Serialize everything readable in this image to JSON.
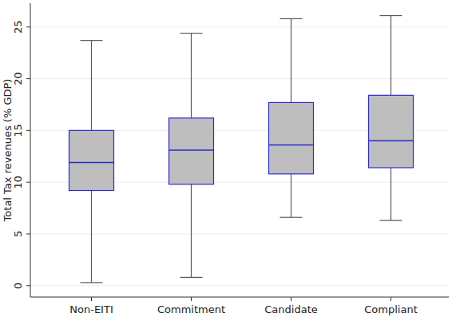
{
  "chart_data": {
    "type": "box",
    "y_label": "Total Tax revenues (% GDP)",
    "categories": [
      "Non-EITI",
      "Commitment",
      "Candidate",
      "Compliant"
    ],
    "values": [
      {
        "min": 0.3,
        "q1": 9.2,
        "median": 11.9,
        "q3": 15.0,
        "max": 23.7
      },
      {
        "min": 0.8,
        "q1": 9.8,
        "median": 13.1,
        "q3": 16.2,
        "max": 24.4
      },
      {
        "min": 6.6,
        "q1": 10.8,
        "median": 13.6,
        "q3": 17.7,
        "max": 25.8
      },
      {
        "min": 6.3,
        "q1": 11.4,
        "median": 14.0,
        "q3": 18.4,
        "max": 26.1
      }
    ],
    "color": "#bebebe",
    "ylim": [
      -1.1,
      27.3
    ],
    "yticks": [
      0,
      5,
      10,
      15,
      20,
      25
    ],
    "grid": true
  }
}
